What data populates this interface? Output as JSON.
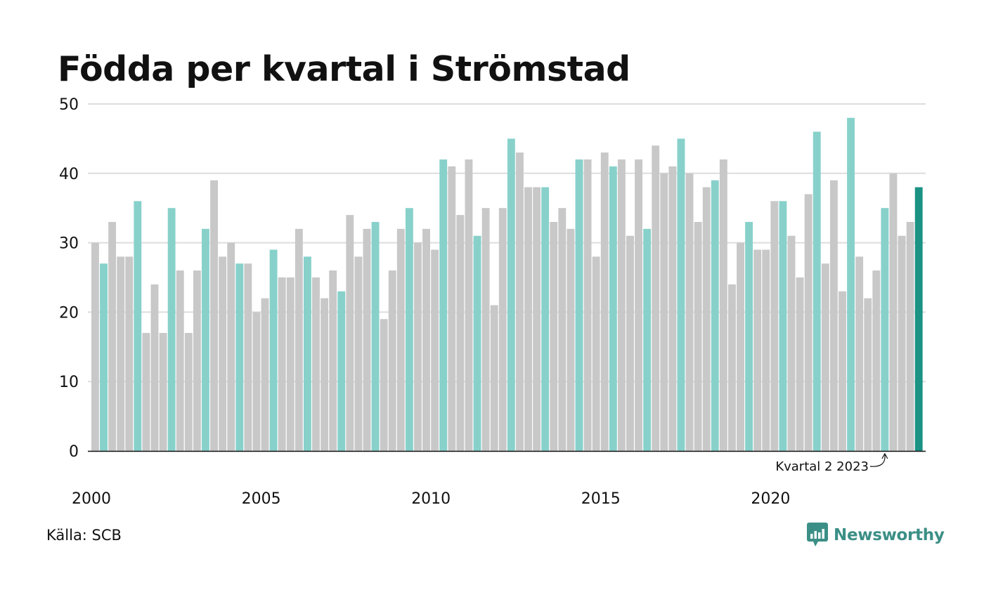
{
  "title": "Födda per kvartal i Strömstad",
  "source": "Källa: SCB",
  "brand": "Newsworthy",
  "colors": {
    "default_bar": "#c8c8c8",
    "quarter_highlight": "#88d1cb",
    "latest_bar": "#1b9284",
    "grid": "#dddddd",
    "axis": "#111111",
    "brand": "#3b8f86"
  },
  "chart_data": {
    "type": "bar",
    "ylim": [
      0,
      50
    ],
    "yticks": [
      0,
      10,
      20,
      30,
      40,
      50
    ],
    "xticks": [
      "2000",
      "2005",
      "2010",
      "2015",
      "2020"
    ],
    "start_year": 2000,
    "grid": true,
    "highlight_quarter": 2,
    "annotation": {
      "text": "Kvartal 2 2023",
      "year": 2023,
      "quarter": 2
    },
    "values": [
      30,
      27,
      33,
      28,
      28,
      36,
      17,
      24,
      17,
      35,
      26,
      17,
      26,
      32,
      39,
      28,
      30,
      27,
      27,
      20,
      22,
      29,
      25,
      25,
      32,
      28,
      25,
      22,
      26,
      23,
      34,
      28,
      32,
      33,
      19,
      26,
      32,
      35,
      30,
      32,
      29,
      42,
      41,
      34,
      42,
      31,
      35,
      21,
      35,
      45,
      43,
      38,
      38,
      38,
      33,
      35,
      32,
      42,
      42,
      28,
      43,
      41,
      42,
      31,
      42,
      32,
      44,
      40,
      41,
      45,
      40,
      33,
      38,
      39,
      42,
      24,
      30,
      33,
      29,
      29,
      36,
      36,
      31,
      25,
      37,
      46,
      27,
      39,
      23,
      48,
      28,
      22,
      26,
      35,
      40,
      31,
      33,
      38
    ]
  }
}
